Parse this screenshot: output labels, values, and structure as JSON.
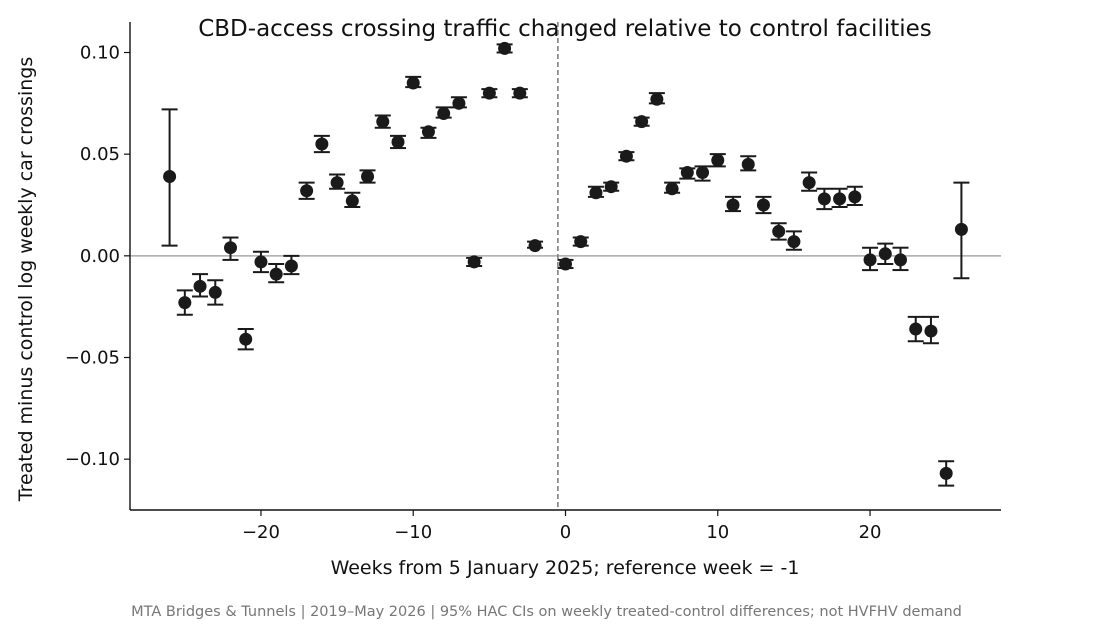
{
  "chart_data": {
    "type": "scatter",
    "title": "CBD-access crossing traffic changed relative to control facilities",
    "xlabel": "Weeks from 5 January 2025; reference week = -1",
    "ylabel": "Treated minus control log weekly car crossings",
    "xlim": [
      -28.6,
      28.6
    ],
    "ylim": [
      -0.125,
      0.115
    ],
    "xticks": [
      -20,
      -10,
      0,
      10,
      20
    ],
    "xtick_labels": [
      "−20",
      "−10",
      "0",
      "10",
      "20"
    ],
    "yticks": [
      -0.1,
      -0.05,
      0.0,
      0.05,
      0.1
    ],
    "ytick_labels": [
      "−0.10",
      "−0.05",
      "0.00",
      "0.05",
      "0.10"
    ],
    "reference_line": {
      "x": -0.5,
      "style": "dashed"
    },
    "zero_line": {
      "y": 0
    },
    "grid": false,
    "legend": "none",
    "colors": {
      "points": "#1a1a1a",
      "zero_line": "#aaaaaa",
      "reference_line": "#777777",
      "caption": "#777777"
    },
    "points": [
      {
        "x": -26,
        "y": 0.039,
        "lo": 0.005,
        "hi": 0.072
      },
      {
        "x": -25,
        "y": -0.023,
        "lo": -0.029,
        "hi": -0.017
      },
      {
        "x": -24,
        "y": -0.015,
        "lo": -0.02,
        "hi": -0.009
      },
      {
        "x": -23,
        "y": -0.018,
        "lo": -0.024,
        "hi": -0.012
      },
      {
        "x": -22,
        "y": 0.004,
        "lo": -0.002,
        "hi": 0.009
      },
      {
        "x": -21,
        "y": -0.041,
        "lo": -0.046,
        "hi": -0.036
      },
      {
        "x": -20,
        "y": -0.003,
        "lo": -0.008,
        "hi": 0.002
      },
      {
        "x": -19,
        "y": -0.009,
        "lo": -0.013,
        "hi": -0.004
      },
      {
        "x": -18,
        "y": -0.005,
        "lo": -0.009,
        "hi": 0.0
      },
      {
        "x": -17,
        "y": 0.032,
        "lo": 0.028,
        "hi": 0.036
      },
      {
        "x": -16,
        "y": 0.055,
        "lo": 0.051,
        "hi": 0.059
      },
      {
        "x": -15,
        "y": 0.036,
        "lo": 0.033,
        "hi": 0.04
      },
      {
        "x": -14,
        "y": 0.027,
        "lo": 0.024,
        "hi": 0.031
      },
      {
        "x": -13,
        "y": 0.039,
        "lo": 0.036,
        "hi": 0.042
      },
      {
        "x": -12,
        "y": 0.066,
        "lo": 0.063,
        "hi": 0.069
      },
      {
        "x": -11,
        "y": 0.056,
        "lo": 0.053,
        "hi": 0.059
      },
      {
        "x": -10,
        "y": 0.085,
        "lo": 0.083,
        "hi": 0.088
      },
      {
        "x": -9,
        "y": 0.061,
        "lo": 0.058,
        "hi": 0.063
      },
      {
        "x": -8,
        "y": 0.07,
        "lo": 0.068,
        "hi": 0.073
      },
      {
        "x": -7,
        "y": 0.075,
        "lo": 0.073,
        "hi": 0.078
      },
      {
        "x": -6,
        "y": -0.003,
        "lo": -0.005,
        "hi": -0.001
      },
      {
        "x": -5,
        "y": 0.08,
        "lo": 0.078,
        "hi": 0.082
      },
      {
        "x": -4,
        "y": 0.102,
        "lo": 0.1,
        "hi": 0.104
      },
      {
        "x": -3,
        "y": 0.08,
        "lo": 0.078,
        "hi": 0.082
      },
      {
        "x": -2,
        "y": 0.005,
        "lo": 0.004,
        "hi": 0.007
      },
      {
        "x": 0,
        "y": -0.004,
        "lo": -0.006,
        "hi": -0.002
      },
      {
        "x": 1,
        "y": 0.007,
        "lo": 0.005,
        "hi": 0.009
      },
      {
        "x": 2,
        "y": 0.031,
        "lo": 0.029,
        "hi": 0.034
      },
      {
        "x": 3,
        "y": 0.034,
        "lo": 0.032,
        "hi": 0.036
      },
      {
        "x": 4,
        "y": 0.049,
        "lo": 0.047,
        "hi": 0.051
      },
      {
        "x": 5,
        "y": 0.066,
        "lo": 0.064,
        "hi": 0.068
      },
      {
        "x": 6,
        "y": 0.077,
        "lo": 0.075,
        "hi": 0.08
      },
      {
        "x": 7,
        "y": 0.033,
        "lo": 0.031,
        "hi": 0.036
      },
      {
        "x": 8,
        "y": 0.041,
        "lo": 0.038,
        "hi": 0.043
      },
      {
        "x": 9,
        "y": 0.041,
        "lo": 0.037,
        "hi": 0.044
      },
      {
        "x": 10,
        "y": 0.047,
        "lo": 0.044,
        "hi": 0.05
      },
      {
        "x": 11,
        "y": 0.025,
        "lo": 0.022,
        "hi": 0.029
      },
      {
        "x": 12,
        "y": 0.045,
        "lo": 0.042,
        "hi": 0.049
      },
      {
        "x": 13,
        "y": 0.025,
        "lo": 0.021,
        "hi": 0.029
      },
      {
        "x": 14,
        "y": 0.012,
        "lo": 0.008,
        "hi": 0.016
      },
      {
        "x": 15,
        "y": 0.007,
        "lo": 0.003,
        "hi": 0.012
      },
      {
        "x": 16,
        "y": 0.036,
        "lo": 0.032,
        "hi": 0.041
      },
      {
        "x": 17,
        "y": 0.028,
        "lo": 0.023,
        "hi": 0.033
      },
      {
        "x": 18,
        "y": 0.028,
        "lo": 0.024,
        "hi": 0.033
      },
      {
        "x": 19,
        "y": 0.029,
        "lo": 0.025,
        "hi": 0.034
      },
      {
        "x": 20,
        "y": -0.002,
        "lo": -0.007,
        "hi": 0.004
      },
      {
        "x": 21,
        "y": 0.001,
        "lo": -0.004,
        "hi": 0.006
      },
      {
        "x": 22,
        "y": -0.002,
        "lo": -0.007,
        "hi": 0.004
      },
      {
        "x": 23,
        "y": -0.036,
        "lo": -0.042,
        "hi": -0.03
      },
      {
        "x": 24,
        "y": -0.037,
        "lo": -0.043,
        "hi": -0.03
      },
      {
        "x": 25,
        "y": -0.107,
        "lo": -0.113,
        "hi": -0.101
      },
      {
        "x": 26,
        "y": 0.013,
        "lo": -0.011,
        "hi": 0.036
      }
    ]
  },
  "caption": "MTA Bridges & Tunnels | 2019–May 2026 | 95% HAC CIs on weekly treated-control differences; not HVFHV demand"
}
